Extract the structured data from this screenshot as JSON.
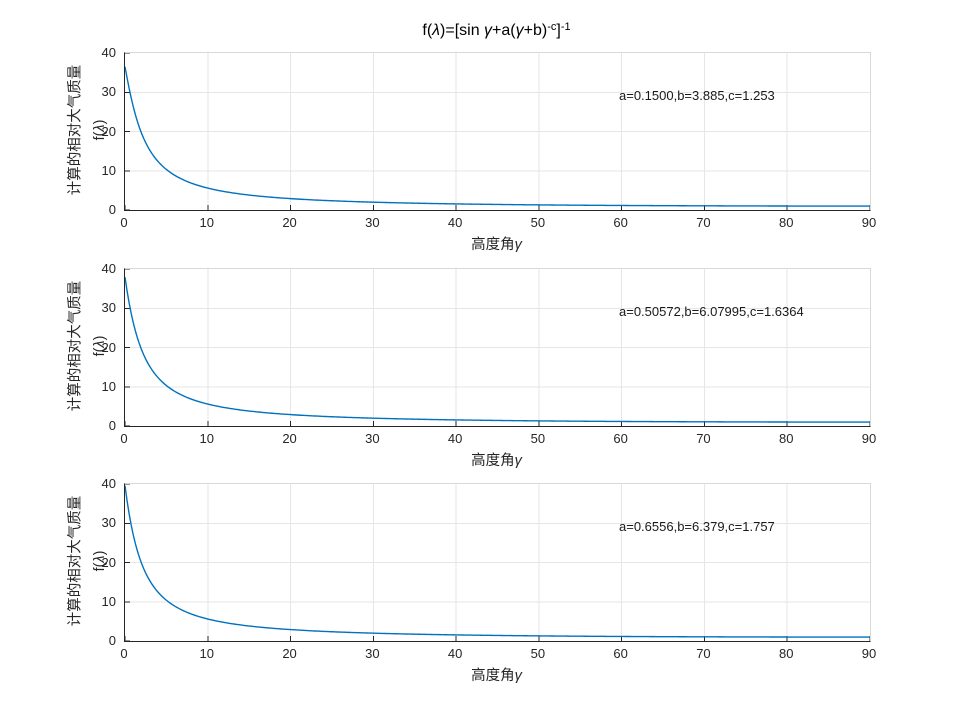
{
  "figure": {
    "title": {
      "s1": "f(",
      "s2": "λ",
      "s3": ")=[sin ",
      "s4": "γ",
      "s5": "+a(",
      "s6": "γ",
      "s7": "+b)",
      "s8": "-c",
      "s9": "]",
      "s10": "-1"
    },
    "title_plain": "f(λ)=[sin γ+a(γ+b)^-c]^-1",
    "ylabel_line1": "计算的相对大气质量",
    "ylabel2": {
      "p1": "f(",
      "g": "λ",
      "p2": ")"
    },
    "xlabel": {
      "cjk": "高度角",
      "greek": "γ"
    },
    "colors": {
      "line": "#0072BD",
      "grid": "#e6e6e6",
      "axis": "#262626",
      "box_light": "#d9d9d9",
      "background": "#ffffff",
      "annotation_text": "#1a1a1a"
    }
  },
  "chart_data": [
    {
      "type": "line",
      "title": "f(λ)=[sin γ+a(γ+b)^-c]^-1",
      "xlabel": "高度角γ",
      "ylabel": "计算的相对大气质量 f(λ)",
      "xlim": [
        0,
        90
      ],
      "ylim": [
        0,
        40
      ],
      "xticks": [
        0,
        10,
        20,
        30,
        40,
        50,
        60,
        70,
        80,
        90
      ],
      "yticks": [
        0,
        10,
        20,
        30,
        40
      ],
      "grid": true,
      "legend": null,
      "annotation": "a=0.1500,b=3.885,c=1.253",
      "params": {
        "a": 0.15,
        "b": 3.885,
        "c": 1.253
      },
      "formula": "f(γ) = 1 / ( sin(γ°) + a·(γ+b)^(-c) )",
      "x": [
        0,
        0.5,
        1,
        2,
        3,
        4,
        5,
        7,
        10,
        15,
        20,
        30,
        40,
        50,
        60,
        70,
        80,
        90
      ],
      "y": [
        36.51,
        30.99,
        26.31,
        19.54,
        15.22,
        12.34,
        10.32,
        7.73,
        5.58,
        3.81,
        2.9,
        1.99,
        1.55,
        1.3,
        1.15,
        1.06,
        1.01,
        1.0
      ]
    },
    {
      "type": "line",
      "title": "f(λ)=[sin γ+a(γ+b)^-c]^-1",
      "xlabel": "高度角γ",
      "ylabel": "计算的相对大气质量 f(λ)",
      "xlim": [
        0,
        90
      ],
      "ylim": [
        0,
        40
      ],
      "xticks": [
        0,
        10,
        20,
        30,
        40,
        50,
        60,
        70,
        80,
        90
      ],
      "yticks": [
        0,
        10,
        20,
        30,
        40
      ],
      "grid": true,
      "legend": null,
      "annotation": "a=0.50572,b=6.07995,c=1.6364",
      "params": {
        "a": 0.50572,
        "b": 6.07995,
        "c": 1.6364
      },
      "formula": "f(γ) = 1 / ( sin(γ°) + a·(γ+b)^(-c) )",
      "x": [
        0,
        0.5,
        1,
        2,
        3,
        4,
        5,
        7,
        10,
        15,
        20,
        30,
        40,
        50,
        60,
        70,
        80,
        90
      ],
      "y": [
        37.92,
        31.34,
        26.31,
        19.43,
        15.15,
        12.3,
        10.31,
        7.73,
        5.59,
        3.81,
        2.9,
        1.99,
        1.55,
        1.3,
        1.15,
        1.06,
        1.02,
        1.0
      ]
    },
    {
      "type": "line",
      "title": "f(λ)=[sin γ+a(γ+b)^-c]^-1",
      "xlabel": "高度角γ",
      "ylabel": "计算的相对大气质量 f(λ)",
      "xlim": [
        0,
        90
      ],
      "ylim": [
        0,
        40
      ],
      "xticks": [
        0,
        10,
        20,
        30,
        40,
        50,
        60,
        70,
        80,
        90
      ],
      "yticks": [
        0,
        10,
        20,
        30,
        40
      ],
      "grid": true,
      "legend": null,
      "annotation": "a=0.6556,b=6.379,c=1.757",
      "params": {
        "a": 0.6556,
        "b": 6.379,
        "c": 1.757
      },
      "formula": "f(γ) = 1 / ( sin(γ°) + a·(γ+b)^(-c) )",
      "x": [
        0,
        0.5,
        1,
        2,
        3,
        4,
        5,
        7,
        10,
        15,
        20,
        30,
        40,
        50,
        60,
        70,
        80,
        90
      ],
      "y": [
        39.57,
        32.4,
        27.01,
        19.78,
        15.34,
        12.42,
        10.38,
        7.77,
        5.6,
        3.82,
        2.91,
        2.0,
        1.55,
        1.3,
        1.15,
        1.06,
        1.02,
        1.0
      ]
    }
  ]
}
